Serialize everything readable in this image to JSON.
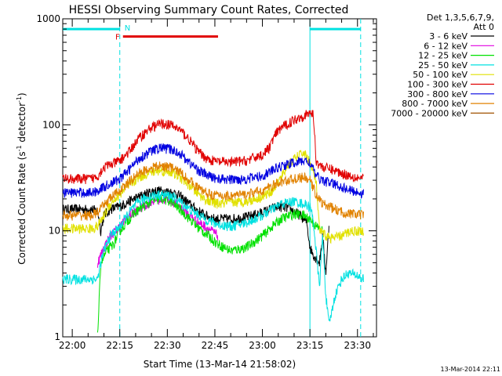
{
  "chart_data": {
    "type": "line",
    "title": "HESSI Observing Summary Count Rates, Corrected",
    "xlabel": "Start Time (13-Mar-14 21:58:02)",
    "ylabel": "Corrected Count Rate (s⁻¹ detector⁻¹)",
    "ylabel_parts": {
      "main": "Corrected Count Rate (s",
      "exp1": "-1",
      "mid": " detector",
      "exp2": "-1",
      "end": ")"
    },
    "yscale": "log",
    "ylim": [
      1,
      1000
    ],
    "xlim_min": [
      1317,
      1416
    ],
    "x_ticks": [
      {
        "min": 1320,
        "label": "22:00"
      },
      {
        "min": 1335,
        "label": "22:15"
      },
      {
        "min": 1350,
        "label": "22:30"
      },
      {
        "min": 1365,
        "label": "22:45"
      },
      {
        "min": 1380,
        "label": "23:00"
      },
      {
        "min": 1395,
        "label": "23:15"
      },
      {
        "min": 1410,
        "label": "23:30"
      }
    ],
    "y_ticks": [
      {
        "value": 1,
        "label": "1"
      },
      {
        "value": 10,
        "label": "10"
      },
      {
        "value": 100,
        "label": "100"
      },
      {
        "value": 1000,
        "label": "1000"
      }
    ],
    "legend_header": [
      "Det 1,3,5,6,7,9,",
      "Att 0"
    ],
    "legend_position": "right",
    "series": [
      {
        "name": "3 - 6 keV",
        "color": "#000000",
        "points": [
          [
            1317,
            16
          ],
          [
            1326,
            16
          ],
          [
            1328,
            15.5
          ],
          [
            1329,
            10
          ],
          [
            1330,
            14
          ],
          [
            1332,
            16
          ],
          [
            1335,
            17
          ],
          [
            1338,
            19
          ],
          [
            1341,
            21
          ],
          [
            1345,
            23.5
          ],
          [
            1347,
            24
          ],
          [
            1350,
            23.5
          ],
          [
            1353,
            22.5
          ],
          [
            1356,
            19
          ],
          [
            1359,
            16
          ],
          [
            1362,
            14
          ],
          [
            1365,
            13
          ],
          [
            1370,
            13
          ],
          [
            1375,
            13.5
          ],
          [
            1380,
            15
          ],
          [
            1385,
            17
          ],
          [
            1388,
            16.5
          ],
          [
            1392,
            14
          ],
          [
            1394,
            12
          ],
          [
            1395,
            7
          ],
          [
            1396,
            6
          ],
          [
            1398,
            5
          ],
          [
            1399,
            9
          ],
          [
            1400,
            4
          ],
          [
            1401,
            11
          ]
        ]
      },
      {
        "name": "6 - 12 keV",
        "color": "#e100e1",
        "points": [
          [
            1328,
            5
          ],
          [
            1330,
            7
          ],
          [
            1332,
            9
          ],
          [
            1335,
            11
          ],
          [
            1338,
            14
          ],
          [
            1341,
            16
          ],
          [
            1345,
            19
          ],
          [
            1348,
            20
          ],
          [
            1351,
            19.5
          ],
          [
            1354,
            17
          ],
          [
            1357,
            14
          ],
          [
            1360,
            12
          ],
          [
            1363,
            10.5
          ],
          [
            1366,
            9
          ]
        ]
      },
      {
        "name": "12 - 25 keV",
        "color": "#00e100",
        "points": [
          [
            1328,
            1
          ],
          [
            1329,
            5
          ],
          [
            1331,
            6.5
          ],
          [
            1333,
            7.5
          ],
          [
            1335,
            10
          ],
          [
            1338,
            13
          ],
          [
            1341,
            16
          ],
          [
            1345,
            19
          ],
          [
            1348,
            20
          ],
          [
            1351,
            19
          ],
          [
            1354,
            16
          ],
          [
            1357,
            13
          ],
          [
            1360,
            10.5
          ],
          [
            1363,
            9
          ],
          [
            1366,
            7.5
          ],
          [
            1370,
            6.5
          ],
          [
            1375,
            7
          ],
          [
            1380,
            9
          ],
          [
            1383,
            11
          ],
          [
            1386,
            13
          ],
          [
            1390,
            14.5
          ],
          [
            1393,
            14
          ],
          [
            1395,
            13
          ],
          [
            1397,
            11
          ],
          [
            1399,
            10
          ]
        ]
      },
      {
        "name": "25 - 50 keV",
        "color": "#00e1e1",
        "points": [
          [
            1317,
            3.5
          ],
          [
            1326,
            3.5
          ],
          [
            1328,
            3.5
          ],
          [
            1329,
            5
          ],
          [
            1330,
            6.5
          ],
          [
            1332,
            9
          ],
          [
            1335,
            11
          ],
          [
            1338,
            15
          ],
          [
            1341,
            19
          ],
          [
            1345,
            21.5
          ],
          [
            1348,
            22
          ],
          [
            1351,
            21.5
          ],
          [
            1354,
            19
          ],
          [
            1357,
            16
          ],
          [
            1360,
            14
          ],
          [
            1363,
            12.5
          ],
          [
            1366,
            11.5
          ],
          [
            1370,
            11
          ],
          [
            1375,
            12
          ],
          [
            1380,
            14
          ],
          [
            1383,
            16
          ],
          [
            1386,
            18
          ],
          [
            1390,
            19
          ],
          [
            1393,
            18
          ],
          [
            1395,
            17
          ],
          [
            1396,
            13
          ],
          [
            1398,
            3
          ],
          [
            1399,
            9
          ],
          [
            1400,
            2.5
          ],
          [
            1401,
            1.3
          ],
          [
            1403,
            2.5
          ],
          [
            1405,
            3.5
          ],
          [
            1407,
            4
          ],
          [
            1410,
            3.8
          ],
          [
            1412,
            3.5
          ]
        ]
      },
      {
        "name": "50 - 100 keV",
        "color": "#e1e100",
        "points": [
          [
            1317,
            10.5
          ],
          [
            1326,
            10.5
          ],
          [
            1328,
            11
          ],
          [
            1330,
            14
          ],
          [
            1332,
            18
          ],
          [
            1335,
            22
          ],
          [
            1338,
            27
          ],
          [
            1341,
            32
          ],
          [
            1345,
            36
          ],
          [
            1348,
            37
          ],
          [
            1351,
            36
          ],
          [
            1354,
            32
          ],
          [
            1357,
            27
          ],
          [
            1360,
            22
          ],
          [
            1363,
            19
          ],
          [
            1366,
            18
          ],
          [
            1370,
            18.5
          ],
          [
            1375,
            19
          ],
          [
            1380,
            21
          ],
          [
            1383,
            24
          ],
          [
            1386,
            32
          ],
          [
            1388,
            42
          ],
          [
            1391,
            50
          ],
          [
            1393,
            55
          ],
          [
            1395,
            45
          ],
          [
            1397,
            28
          ],
          [
            1398,
            10
          ],
          [
            1400,
            9
          ],
          [
            1402,
            8.5
          ],
          [
            1405,
            9
          ],
          [
            1408,
            10
          ],
          [
            1412,
            10
          ]
        ]
      },
      {
        "name": "100 - 300 keV",
        "color": "#e10000",
        "points": [
          [
            1317,
            31
          ],
          [
            1326,
            31
          ],
          [
            1328,
            33
          ],
          [
            1330,
            40
          ],
          [
            1332,
            42
          ],
          [
            1335,
            46
          ],
          [
            1338,
            56
          ],
          [
            1341,
            75
          ],
          [
            1345,
            95
          ],
          [
            1348,
            103
          ],
          [
            1351,
            100
          ],
          [
            1354,
            90
          ],
          [
            1357,
            72
          ],
          [
            1360,
            55
          ],
          [
            1363,
            47
          ],
          [
            1366,
            45
          ],
          [
            1370,
            44.5
          ],
          [
            1375,
            46
          ],
          [
            1378,
            50
          ],
          [
            1380,
            52
          ],
          [
            1382,
            60
          ],
          [
            1384,
            80
          ],
          [
            1386,
            95
          ],
          [
            1388,
            102
          ],
          [
            1390,
            112
          ],
          [
            1393,
            122
          ],
          [
            1395,
            128
          ],
          [
            1396,
            130
          ],
          [
            1397,
            45
          ],
          [
            1399,
            40
          ],
          [
            1402,
            38
          ],
          [
            1405,
            35
          ],
          [
            1408,
            33
          ],
          [
            1412,
            31
          ]
        ]
      },
      {
        "name": "300 - 800 keV",
        "color": "#0000e1",
        "points": [
          [
            1317,
            23
          ],
          [
            1326,
            23
          ],
          [
            1328,
            24
          ],
          [
            1330,
            26
          ],
          [
            1332,
            28
          ],
          [
            1335,
            31
          ],
          [
            1338,
            38
          ],
          [
            1341,
            48
          ],
          [
            1345,
            57
          ],
          [
            1348,
            61
          ],
          [
            1351,
            59
          ],
          [
            1354,
            54
          ],
          [
            1357,
            44
          ],
          [
            1360,
            37
          ],
          [
            1363,
            33
          ],
          [
            1366,
            31
          ],
          [
            1370,
            30.5
          ],
          [
            1375,
            31
          ],
          [
            1380,
            33
          ],
          [
            1383,
            37
          ],
          [
            1386,
            41
          ],
          [
            1390,
            44
          ],
          [
            1393,
            46
          ],
          [
            1395,
            44
          ],
          [
            1397,
            33
          ],
          [
            1399,
            30
          ],
          [
            1402,
            28
          ],
          [
            1405,
            26
          ],
          [
            1408,
            24
          ],
          [
            1412,
            22.5
          ]
        ]
      },
      {
        "name": "800 - 7000 keV",
        "color": "#e18200",
        "points": [
          [
            1317,
            14
          ],
          [
            1326,
            14
          ],
          [
            1328,
            15
          ],
          [
            1330,
            17.5
          ],
          [
            1332,
            20.5
          ],
          [
            1335,
            24
          ],
          [
            1338,
            29
          ],
          [
            1341,
            35
          ],
          [
            1345,
            39.5
          ],
          [
            1348,
            41
          ],
          [
            1351,
            40
          ],
          [
            1354,
            36
          ],
          [
            1357,
            30
          ],
          [
            1360,
            25
          ],
          [
            1363,
            22.5
          ],
          [
            1366,
            21.5
          ],
          [
            1370,
            21.5
          ],
          [
            1375,
            22
          ],
          [
            1380,
            24
          ],
          [
            1383,
            26.5
          ],
          [
            1386,
            29
          ],
          [
            1390,
            31
          ],
          [
            1393,
            32
          ],
          [
            1395,
            30
          ],
          [
            1397,
            22
          ],
          [
            1399,
            18
          ],
          [
            1402,
            16.5
          ],
          [
            1405,
            15
          ],
          [
            1408,
            14.5
          ],
          [
            1412,
            14
          ]
        ]
      },
      {
        "name": "7000 - 20000 keV",
        "color": "#a05000",
        "points": []
      }
    ],
    "annotations": {
      "saa_bars": [
        {
          "start": 1317,
          "end": 1335,
          "level": 800
        },
        {
          "start": 1395,
          "end": 1411,
          "level": 800
        }
      ],
      "night_dashed_lines": [
        1335,
        1411
      ],
      "saa_solid_line": 1395,
      "flare_bar": {
        "start": 1336,
        "end": 1366,
        "level": 680
      },
      "flare_label": "F",
      "night_label": "N",
      "colors": {
        "saa": "#00e1e1",
        "flare": "#e10000"
      }
    }
  },
  "footer": {
    "timestamp": "13-Mar-2014 22:11"
  }
}
